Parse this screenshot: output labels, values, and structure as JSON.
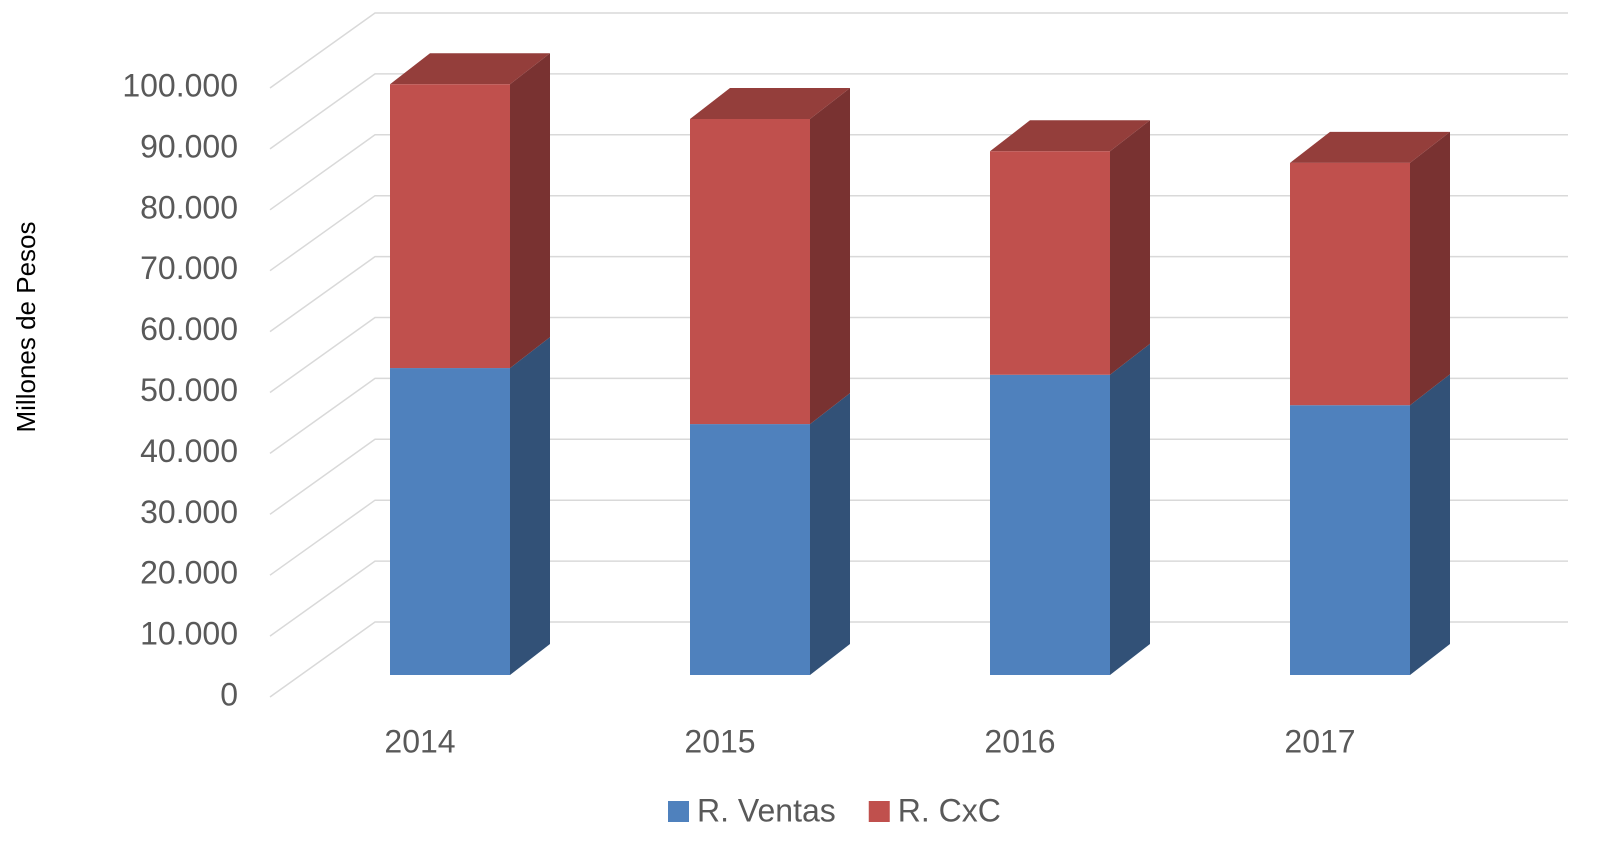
{
  "chart_data": {
    "type": "bar3d_stacked",
    "y_label": "Millones de Pesos",
    "categories": [
      "2014",
      "2015",
      "2016",
      "2017"
    ],
    "series": [
      {
        "name": "R. Ventas",
        "color": "#4f81bd",
        "values": [
          50400,
          41200,
          49300,
          44300
        ]
      },
      {
        "name": "R. CxC",
        "color": "#c0504d",
        "values": [
          46600,
          50100,
          36700,
          39800
        ]
      }
    ],
    "ylim": [
      0,
      100000
    ],
    "yticks": [
      0,
      {
        "value": 10000,
        "label": "10.000"
      },
      {
        "value": 20000,
        "label": "20.000"
      },
      {
        "value": 30000,
        "label": "30.000"
      },
      {
        "value": 40000,
        "label": "40.000"
      },
      {
        "value": 50000,
        "label": "50.000"
      },
      {
        "value": 60000,
        "label": "60.000"
      },
      {
        "value": 70000,
        "label": "70.000"
      },
      {
        "value": 80000,
        "label": "80.000"
      },
      {
        "value": 90000,
        "label": "90.000"
      },
      {
        "value": 100000,
        "label": "100.000"
      }
    ],
    "grid": true,
    "legend": "bottom"
  }
}
